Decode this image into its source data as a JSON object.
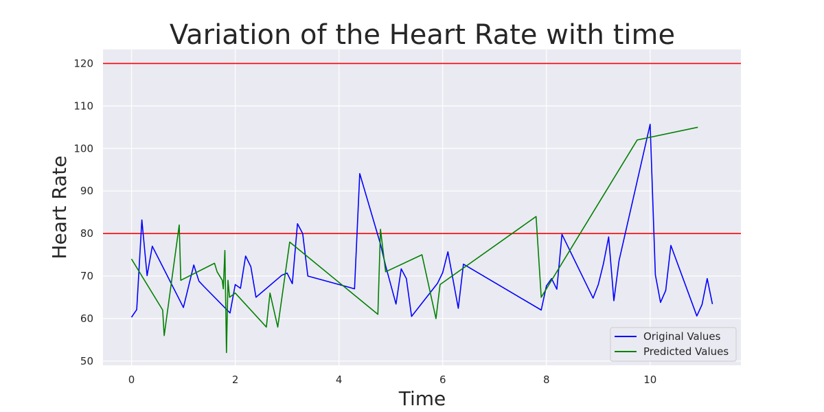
{
  "chart_data": {
    "type": "line",
    "title": "Variation of the Heart Rate with time",
    "xlabel": "Time",
    "ylabel": "Heart Rate",
    "xlim": [
      -0.55,
      11.75
    ],
    "ylim": [
      49,
      123.3
    ],
    "xticks": [
      0,
      2,
      4,
      6,
      8,
      10
    ],
    "yticks": [
      50,
      60,
      70,
      80,
      90,
      100,
      110,
      120
    ],
    "grid": true,
    "legend_position": "lower-right",
    "reference_lines": [
      {
        "y": 120,
        "color": "#ff0000"
      },
      {
        "y": 80,
        "color": "#ff0000"
      }
    ],
    "series": [
      {
        "name": "Original Values",
        "color": "#0000ff",
        "x": [
          0.0,
          0.1,
          0.2,
          0.3,
          0.4,
          1.0,
          1.2,
          1.3,
          1.4,
          1.9,
          2.0,
          2.1,
          2.2,
          2.3,
          2.4,
          2.9,
          3.0,
          3.1,
          3.2,
          3.3,
          3.4,
          4.3,
          4.4,
          4.8,
          4.9,
          5.1,
          5.2,
          5.3,
          5.4,
          5.9,
          6.0,
          6.1,
          6.3,
          6.4,
          7.9,
          8.0,
          8.1,
          8.2,
          8.3,
          8.9,
          9.0,
          9.1,
          9.2,
          9.3,
          9.4,
          10.0,
          10.1,
          10.2,
          10.3,
          10.4,
          10.9,
          11.0,
          11.1,
          11.2
        ],
        "y": [
          60.3,
          62.1,
          83.2,
          70.1,
          77.0,
          62.6,
          72.6,
          68.8,
          67.5,
          61.3,
          68.0,
          67.1,
          74.7,
          72.2,
          65.0,
          70.2,
          70.7,
          68.2,
          82.3,
          80.0,
          70.0,
          67.0,
          94.1,
          77.5,
          72.4,
          63.4,
          71.7,
          69.4,
          60.5,
          68.3,
          70.8,
          75.7,
          62.4,
          72.8,
          62.0,
          67.7,
          69.4,
          66.9,
          79.8,
          64.8,
          68.0,
          72.9,
          79.2,
          64.2,
          73.6,
          105.7,
          70.3,
          63.8,
          66.6,
          77.2,
          60.6,
          63.3,
          69.4,
          63.4
        ]
      },
      {
        "name": "Predicted Values",
        "color": "#008000",
        "x": [
          0.0,
          0.6,
          0.63,
          0.92,
          0.95,
          1.6,
          1.65,
          1.75,
          1.77,
          1.8,
          1.83,
          1.86,
          1.89,
          2.0,
          2.6,
          2.67,
          2.82,
          3.05,
          4.75,
          4.8,
          4.9,
          5.6,
          5.87,
          5.95,
          7.8,
          7.9,
          9.75,
          10.92
        ],
        "y": [
          74.0,
          62.0,
          56.0,
          82.0,
          69.0,
          73.0,
          71.0,
          69.0,
          67.0,
          76.0,
          52.0,
          69.0,
          65.0,
          66.0,
          58.0,
          66.0,
          58.0,
          78.0,
          61.0,
          81.0,
          71.0,
          75.0,
          60.0,
          68.0,
          84.0,
          65.0,
          102.0,
          105.0
        ]
      }
    ]
  }
}
